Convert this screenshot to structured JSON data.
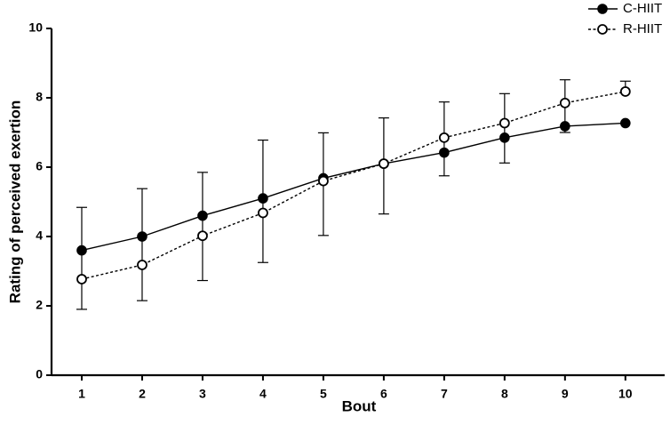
{
  "chart_data": {
    "type": "line",
    "title": "",
    "xlabel": "Bout",
    "ylabel": "Rating of perceived exertion",
    "x": [
      1,
      2,
      3,
      4,
      5,
      6,
      7,
      8,
      9,
      10
    ],
    "xlim": [
      0.5,
      10.65
    ],
    "ylim": [
      0,
      10
    ],
    "yticks": [
      0,
      2,
      4,
      6,
      8,
      10
    ],
    "grid": false,
    "legend_position": "top-right",
    "series": [
      {
        "name": "C-HIIT",
        "marker": "filled-circle",
        "line_style": "solid",
        "color": "#000000",
        "values": [
          3.6,
          4.0,
          4.6,
          5.1,
          5.68,
          6.1,
          6.42,
          6.85,
          7.18,
          7.27
        ],
        "error_upper": [
          null,
          null,
          null,
          null,
          null,
          null,
          null,
          null,
          null,
          null
        ],
        "error_lower": [
          null,
          null,
          null,
          null,
          null,
          null,
          null,
          null,
          null,
          null
        ]
      },
      {
        "name": "R-HIIT",
        "marker": "open-circle",
        "line_style": "dashed",
        "color": "#000000",
        "values": [
          2.77,
          3.18,
          4.02,
          4.68,
          5.6,
          6.1,
          6.85,
          7.27,
          7.85,
          8.18
        ],
        "error_upper": [
          4.84,
          5.38,
          5.85,
          6.78,
          6.99,
          7.42,
          7.88,
          8.12,
          8.52,
          8.48
        ],
        "error_lower": [
          1.9,
          2.15,
          2.73,
          3.25,
          4.03,
          4.65,
          5.75,
          6.12,
          7.0,
          null
        ]
      }
    ]
  }
}
